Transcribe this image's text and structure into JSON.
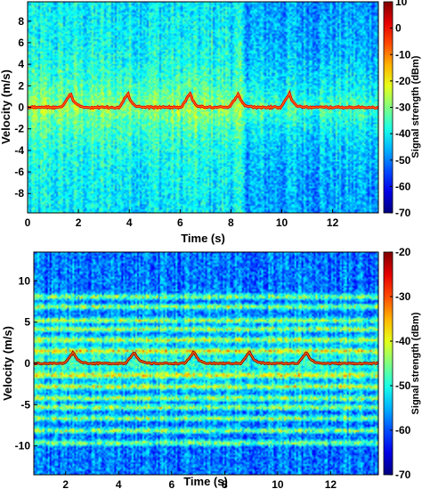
{
  "chart_data": [
    {
      "type": "heatmap",
      "title": "",
      "xlabel": "Time (s)",
      "ylabel": "Velocity (m/s)",
      "xlim": [
        0,
        13.8
      ],
      "ylim": [
        -9.8,
        9.8
      ],
      "xticks": [
        0,
        2,
        4,
        6,
        8,
        10,
        12
      ],
      "yticks": [
        8,
        6,
        4,
        2,
        0,
        -2,
        -4,
        -6,
        -8
      ],
      "colorbar": {
        "label": "Signal strength (dBm)",
        "range": [
          -70,
          10
        ],
        "ticks": [
          10,
          0,
          -10,
          -20,
          -30,
          -40,
          -50,
          -60,
          -70
        ]
      },
      "zero_velocity_trace_dbm": -5,
      "peak_times": [
        1.7,
        3.95,
        6.4,
        8.3,
        10.3
      ]
    },
    {
      "type": "heatmap",
      "title": "",
      "xlabel": "Time (s)",
      "ylabel": "Velocity (m/s)",
      "xlim": [
        0.8,
        13.8
      ],
      "ylim": [
        -13.5,
        13.5
      ],
      "xticks": [
        2,
        4,
        6,
        8,
        10,
        12
      ],
      "yticks": [
        10,
        5,
        0,
        -5,
        -10
      ],
      "colorbar": {
        "label": "Signal strength (dBm)",
        "range": [
          -70,
          -20
        ],
        "ticks": [
          -20,
          -30,
          -40,
          -50,
          -60,
          -70
        ]
      },
      "zero_velocity_trace_dbm": -25,
      "peak_times": [
        2.3,
        4.6,
        6.85,
        8.95,
        11.1
      ]
    }
  ]
}
